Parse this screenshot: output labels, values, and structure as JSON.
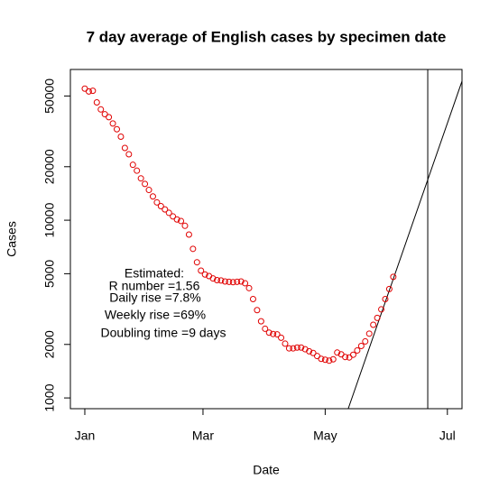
{
  "chart_data": {
    "type": "scatter",
    "title": "7 day average of English cases by specimen date",
    "xlabel": "Date",
    "ylabel": "Cases",
    "log_y": true,
    "xlim": [
      -7.2,
      188.3
    ],
    "ylim": [
      870,
      70500
    ],
    "xticks": [
      {
        "value": 0,
        "label": "Jan"
      },
      {
        "value": 59,
        "label": "Mar"
      },
      {
        "value": 120,
        "label": "May"
      },
      {
        "value": 181,
        "label": "Jul"
      }
    ],
    "yticks": [
      1000,
      2000,
      5000,
      10000,
      20000,
      50000
    ],
    "points": {
      "color": "#e00000",
      "x": [
        0,
        2,
        4,
        6,
        8,
        10,
        12,
        14,
        16,
        18,
        20,
        22,
        24,
        26,
        28,
        30,
        32,
        34,
        36,
        38,
        40,
        42,
        44,
        46,
        48,
        50,
        52,
        54,
        56,
        58,
        60,
        62,
        64,
        66,
        68,
        70,
        72,
        74,
        76,
        78,
        80,
        82,
        84,
        86,
        88,
        90,
        92,
        94,
        96,
        98,
        100,
        102,
        104,
        106,
        108,
        110,
        112,
        114,
        116,
        118,
        120,
        122,
        124,
        126,
        128,
        130,
        132,
        134,
        136,
        138,
        140,
        142,
        144,
        146,
        148,
        150,
        152,
        154
      ],
      "values": [
        55000,
        53000,
        53500,
        46000,
        42000,
        39500,
        38000,
        35000,
        32500,
        29500,
        25500,
        23500,
        20500,
        19000,
        17200,
        16000,
        14800,
        13600,
        12600,
        12000,
        11500,
        11000,
        10500,
        10100,
        9900,
        9300,
        8300,
        6900,
        5800,
        5200,
        4950,
        4850,
        4700,
        4600,
        4580,
        4520,
        4500,
        4480,
        4500,
        4520,
        4420,
        4150,
        3600,
        3120,
        2700,
        2450,
        2330,
        2290,
        2280,
        2180,
        2020,
        1900,
        1900,
        1920,
        1920,
        1880,
        1830,
        1790,
        1720,
        1660,
        1640,
        1620,
        1650,
        1800,
        1760,
        1700,
        1690,
        1750,
        1850,
        1960,
        2080,
        2300,
        2580,
        2820,
        3150,
        3600,
        4100,
        4800
      ]
    },
    "fit_line": {
      "color": "#000000",
      "x": [
        131.5,
        188.3
      ],
      "values": [
        870,
        60600
      ]
    },
    "vline": 171.2,
    "annotations": [
      "Estimated:",
      "R number =1.56",
      "Daily rise =7.8%",
      "Weekly rise =69%",
      "Doubling time =9 days"
    ]
  }
}
